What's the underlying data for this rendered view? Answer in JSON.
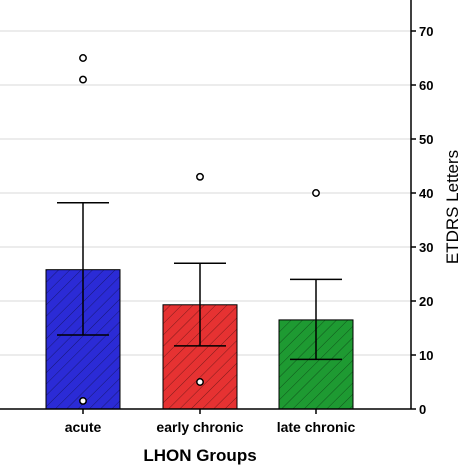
{
  "chart_data": {
    "type": "bar",
    "categories": [
      "acute",
      "early chronic",
      "late chronic"
    ],
    "values": [
      25.8,
      19.3,
      16.5
    ],
    "error_upper": [
      38.2,
      27.0,
      24.0
    ],
    "error_lower": [
      13.7,
      11.7,
      9.2
    ],
    "outliers": [
      [
        65,
        61,
        1.5
      ],
      [
        43,
        5
      ],
      [
        40
      ]
    ],
    "bar_colors": [
      "#2b2bd6",
      "#e63232",
      "#1e9a32"
    ],
    "xlabel": "LHON Groups",
    "ylabel": "ETDRS Letters",
    "ylim": [
      0,
      75
    ],
    "yticks": [
      0,
      10,
      20,
      30,
      40,
      50,
      60,
      70
    ],
    "y_axis_position": "right",
    "grid": true,
    "bar_pattern": "diagonal hatch"
  }
}
